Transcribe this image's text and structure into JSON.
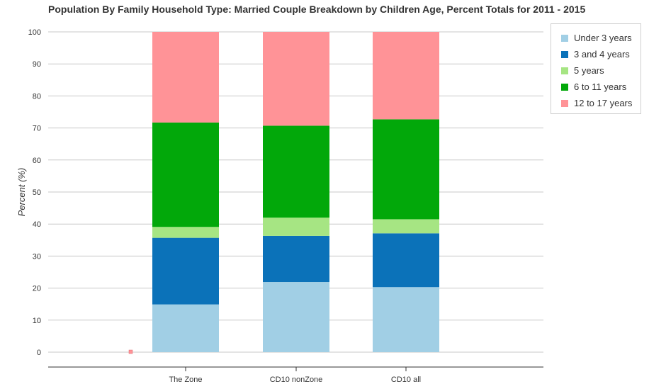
{
  "chart_data": {
    "type": "bar",
    "stacked": true,
    "title": "Population By Family Household Type: Married Couple Breakdown by Children Age, Percent Totals for 2011 - 2015",
    "ylabel": "Percent (%)",
    "xlabel": "",
    "ylim": [
      0,
      100
    ],
    "yticks": [
      0,
      10,
      20,
      30,
      40,
      50,
      60,
      70,
      80,
      90,
      100
    ],
    "grid": true,
    "legend_position": "right",
    "categories": [
      "The Zone",
      "CD10 nonZone",
      "CD10 all"
    ],
    "series": [
      {
        "name": "Under 3 years",
        "color": "#a1cfe5",
        "values": [
          14.9,
          21.9,
          20.3
        ]
      },
      {
        "name": "3 and 4 years",
        "color": "#0b72b9",
        "values": [
          20.8,
          14.4,
          16.8
        ]
      },
      {
        "name": "5 years",
        "color": "#a6e583",
        "values": [
          3.4,
          5.7,
          4.4
        ]
      },
      {
        "name": "6 to 11 years",
        "color": "#02a80a",
        "values": [
          32.6,
          28.7,
          31.2
        ]
      },
      {
        "name": "12 to 17 years",
        "color": "#ff9397",
        "values": [
          28.3,
          29.3,
          27.3
        ]
      }
    ]
  }
}
